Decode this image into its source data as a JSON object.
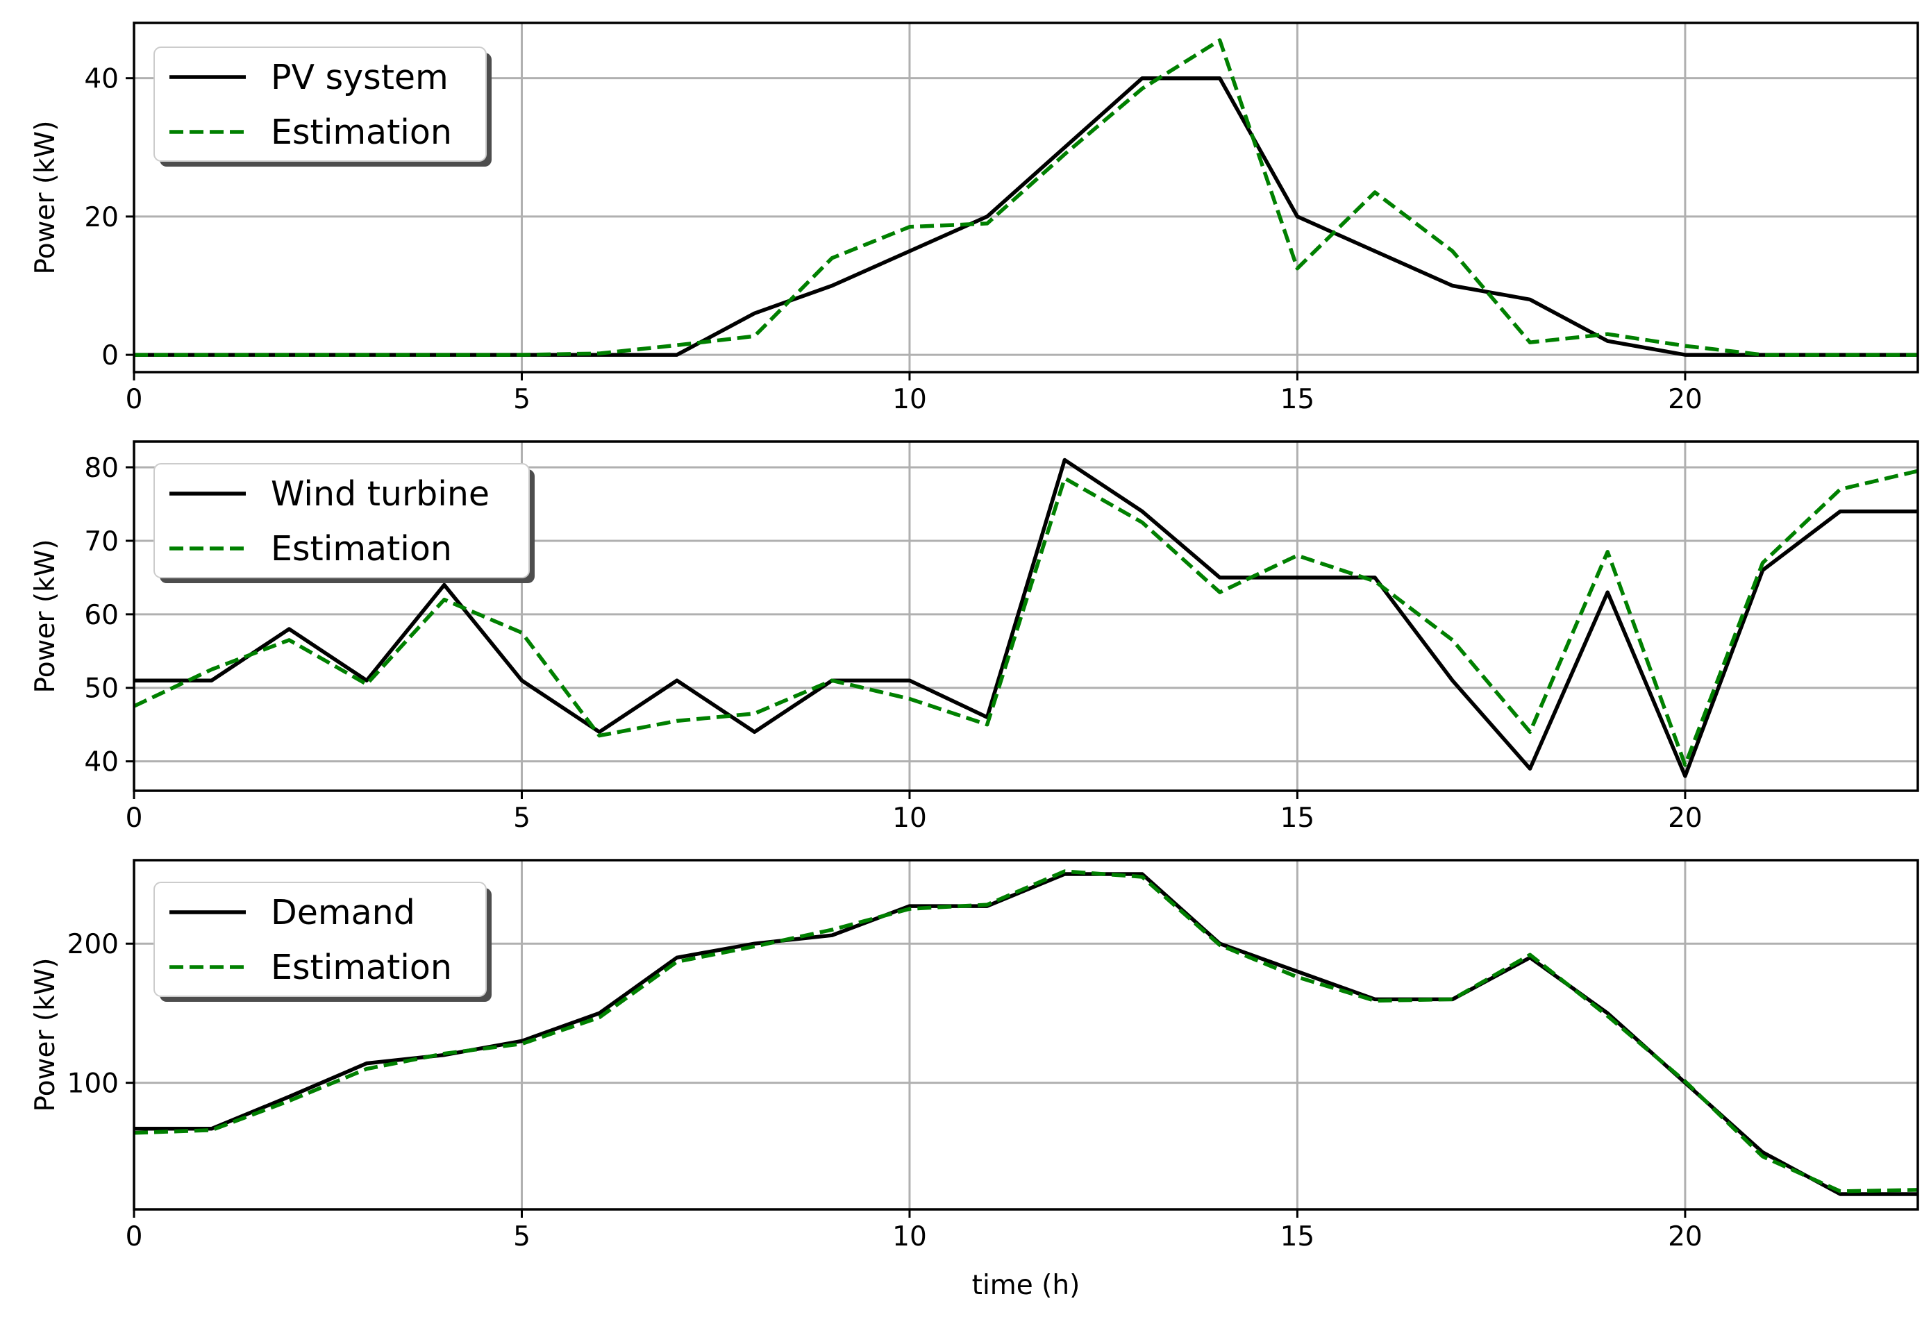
{
  "colors": {
    "actual": "#000000",
    "estimation": "#008000",
    "grid": "#b0b0b0"
  },
  "chart_data": [
    {
      "type": "line",
      "ylabel": "Power (kW)",
      "xlabel": "",
      "xlim": [
        0,
        23
      ],
      "ylim": [
        -2.5,
        48
      ],
      "xticks": [
        0,
        5,
        10,
        15,
        20
      ],
      "yticks": [
        0,
        20,
        40
      ],
      "grid": true,
      "legend": "top-left",
      "x": [
        0,
        1,
        2,
        3,
        4,
        5,
        6,
        7,
        8,
        9,
        10,
        11,
        12,
        13,
        14,
        15,
        16,
        17,
        18,
        19,
        20,
        21,
        22,
        23
      ],
      "series": [
        {
          "name": "PV system",
          "style": "solid",
          "values": [
            0,
            0,
            0,
            0,
            0,
            0,
            0,
            0,
            6,
            10,
            15,
            20,
            30,
            40,
            40,
            20,
            15,
            10,
            8,
            2,
            0,
            0,
            0,
            0
          ]
        },
        {
          "name": "Estimation",
          "style": "dashed",
          "values": [
            0,
            0,
            0,
            0,
            0,
            0,
            0.2,
            1.4,
            2.7,
            14,
            18.5,
            19,
            29,
            38.5,
            45.5,
            12.5,
            23.5,
            15,
            1.8,
            3,
            1.3,
            0,
            0,
            0
          ]
        }
      ]
    },
    {
      "type": "line",
      "ylabel": "Power (kW)",
      "xlabel": "",
      "xlim": [
        0,
        23
      ],
      "ylim": [
        36,
        83.5
      ],
      "xticks": [
        0,
        5,
        10,
        15,
        20
      ],
      "yticks": [
        40,
        50,
        60,
        70,
        80
      ],
      "grid": true,
      "legend": "top-left",
      "x": [
        0,
        1,
        2,
        3,
        4,
        5,
        6,
        7,
        8,
        9,
        10,
        11,
        12,
        13,
        14,
        15,
        16,
        17,
        18,
        19,
        20,
        21,
        22,
        23
      ],
      "series": [
        {
          "name": "Wind turbine",
          "style": "solid",
          "values": [
            51,
            51,
            58,
            51,
            64,
            51,
            44,
            51,
            44,
            51,
            51,
            46,
            81,
            74,
            65,
            65,
            65,
            51,
            39,
            63,
            38,
            66,
            74,
            74
          ]
        },
        {
          "name": "Estimation",
          "style": "dashed",
          "values": [
            47.5,
            52.5,
            56.5,
            50.5,
            62,
            57.5,
            43.5,
            45.5,
            46.5,
            51,
            48.5,
            45,
            78.5,
            72.5,
            63,
            68,
            64.5,
            56.5,
            44,
            68.5,
            39.5,
            67,
            77,
            79.5
          ]
        }
      ]
    },
    {
      "type": "line",
      "ylabel": "Power (kW)",
      "xlabel": "time (h)",
      "xlim": [
        0,
        23
      ],
      "ylim": [
        9,
        260
      ],
      "xticks": [
        0,
        5,
        10,
        15,
        20
      ],
      "yticks": [
        100,
        200
      ],
      "grid": true,
      "legend": "top-left",
      "x": [
        0,
        1,
        2,
        3,
        4,
        5,
        6,
        7,
        8,
        9,
        10,
        11,
        12,
        13,
        14,
        15,
        16,
        17,
        18,
        19,
        20,
        21,
        22,
        23
      ],
      "series": [
        {
          "name": "Demand",
          "style": "solid",
          "values": [
            67,
            67,
            90,
            114,
            120,
            130,
            150,
            190,
            200,
            206,
            227,
            227,
            250,
            250,
            200,
            180,
            160,
            160,
            190,
            150,
            100,
            50,
            20,
            20
          ]
        },
        {
          "name": "Estimation",
          "style": "dashed",
          "values": [
            64,
            66,
            87,
            110,
            121,
            128,
            147,
            187,
            198,
            210,
            225,
            228,
            252,
            248,
            199,
            176,
            159,
            160,
            192,
            148,
            101,
            47,
            22,
            23
          ]
        }
      ]
    }
  ]
}
